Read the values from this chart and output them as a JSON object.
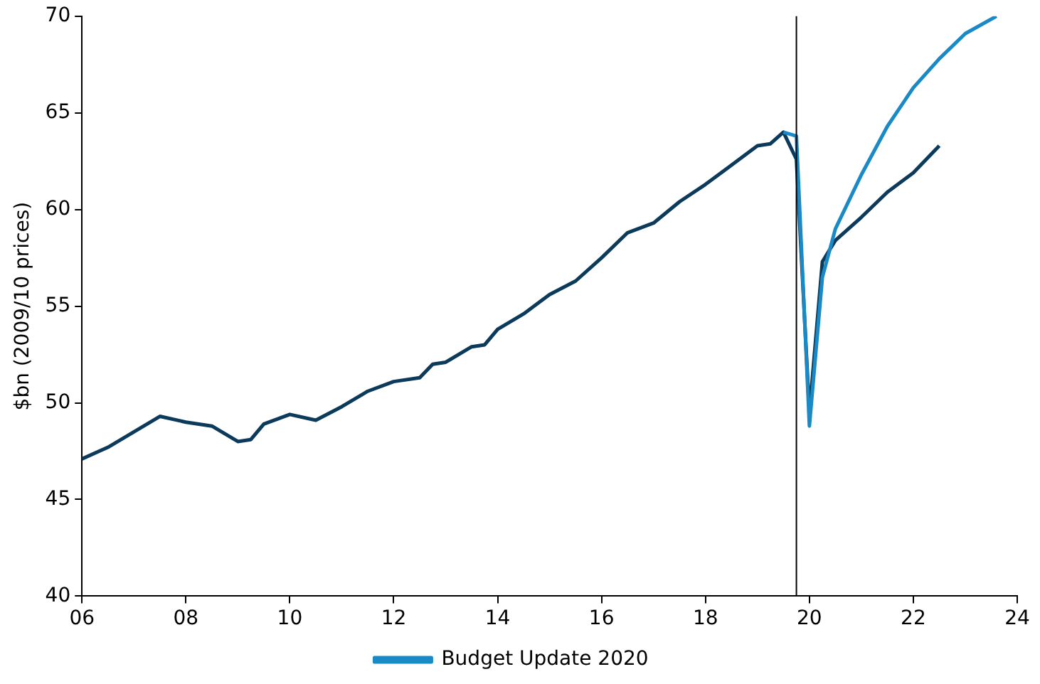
{
  "chart_data": {
    "type": "line",
    "ylabel": "$bn (2009/10 prices)",
    "legend": "bottom",
    "grid": false,
    "marker": "none",
    "line_style": "solid",
    "xlim": [
      2006,
      2024
    ],
    "xticks": [
      {
        "value": 2006,
        "label": "06"
      },
      {
        "value": 2008,
        "label": "08"
      },
      {
        "value": 2010,
        "label": "10"
      },
      {
        "value": 2012,
        "label": "12"
      },
      {
        "value": 2014,
        "label": "14"
      },
      {
        "value": 2016,
        "label": "16"
      },
      {
        "value": 2018,
        "label": "18"
      },
      {
        "value": 2020,
        "label": "20"
      },
      {
        "value": 2022,
        "label": "22"
      },
      {
        "value": 2024,
        "label": "24"
      }
    ],
    "ylim": [
      40,
      70
    ],
    "yticks": [
      40,
      45,
      50,
      55,
      60,
      65,
      70
    ],
    "ref_lines": [
      {
        "axis": "x",
        "value": 2019.75,
        "color": "#000000"
      }
    ],
    "series": [
      {
        "name": "Budget Update 2020",
        "color": "#1a8ac6",
        "x": [
          2019.5,
          2019.75,
          2020,
          2020.25,
          2020.5,
          2021,
          2021.5,
          2022,
          2022.5,
          2023,
          2023.6
        ],
        "values": [
          64,
          63.8,
          48.8,
          56.5,
          59,
          61.8,
          64.3,
          66.3,
          67.8,
          69.1,
          70
        ]
      },
      {
        "color": "#0b3a5a",
        "x": [
          2006,
          2006.5,
          2007,
          2007.5,
          2008,
          2008.5,
          2009,
          2009.25,
          2009.5,
          2010,
          2010.5,
          2011,
          2011.5,
          2012,
          2012.5,
          2012.75,
          2013,
          2013.5,
          2013.75,
          2014,
          2014.5,
          2015,
          2015.5,
          2016,
          2016.5,
          2017,
          2017.5,
          2018,
          2018.5,
          2019,
          2019.25,
          2019.5,
          2019.75,
          2020,
          2020.25,
          2020.5,
          2021,
          2021.5,
          2022,
          2022.5
        ],
        "values": [
          47.1,
          47.7,
          48.5,
          49.3,
          49,
          48.8,
          48,
          48.1,
          48.9,
          49.4,
          49.1,
          49.8,
          50.6,
          51.1,
          51.3,
          52,
          52.1,
          52.9,
          53,
          53.8,
          54.6,
          55.6,
          56.3,
          57.5,
          58.8,
          59.3,
          60.4,
          61.3,
          62.3,
          63.3,
          63.4,
          64,
          62.6,
          49.5,
          57.3,
          58.4,
          59.6,
          60.9,
          61.9,
          63.3
        ]
      }
    ]
  }
}
